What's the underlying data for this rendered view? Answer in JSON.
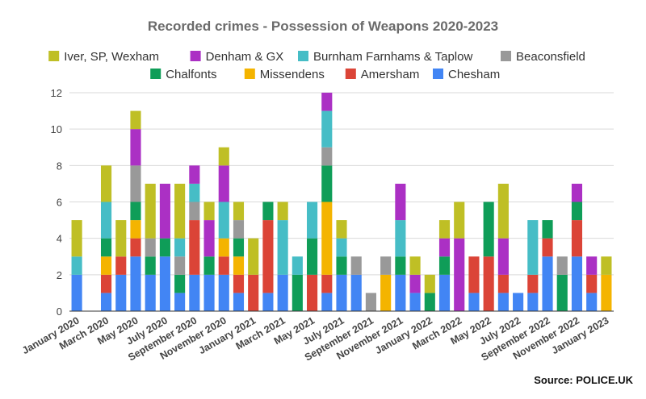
{
  "chart_data": {
    "type": "bar",
    "stacked": true,
    "title": "Recorded crimes - Possession of Weapons 2020-2023",
    "source": "Source: POLICE.UK",
    "xlabel": "",
    "ylabel": "",
    "ylim": [
      0,
      12
    ],
    "yticks": [
      0,
      2,
      4,
      6,
      8,
      10,
      12
    ],
    "grid": true,
    "legend_position": "top",
    "categories": [
      "January 2020",
      "February 2020",
      "March 2020",
      "April 2020",
      "May 2020",
      "June 2020",
      "July 2020",
      "August 2020",
      "September 2020",
      "October 2020",
      "November 2020",
      "December 2020",
      "January 2021",
      "February 2021",
      "March 2021",
      "April 2021",
      "May 2021",
      "June 2021",
      "July 2021",
      "August 2021",
      "September 2021",
      "October 2021",
      "November 2021",
      "December 2021",
      "January 2022",
      "February 2022",
      "March 2022",
      "April 2022",
      "May 2022",
      "June 2022",
      "July 2022",
      "August 2022",
      "September 2022",
      "October 2022",
      "November 2022",
      "December 2022",
      "January 2023"
    ],
    "tick_labels": [
      "January 2020",
      "March 2020",
      "May 2020",
      "July 2020",
      "September 2020",
      "November 2020",
      "January 2021",
      "March 2021",
      "May 2021",
      "July 2021",
      "September 2021",
      "November 2021",
      "January 2022",
      "March 2022",
      "May 2022",
      "July 2022",
      "September 2022",
      "November 2022",
      "January 2023"
    ],
    "series": [
      {
        "name": "Chesham",
        "color": "#4285f4",
        "values": [
          2,
          0,
          1,
          2,
          3,
          2,
          3,
          1,
          2,
          2,
          2,
          1,
          0,
          1,
          2,
          0,
          0,
          1,
          2,
          2,
          0,
          0,
          2,
          1,
          0,
          2,
          0,
          1,
          0,
          1,
          1,
          1,
          3,
          0,
          3,
          1,
          0
        ]
      },
      {
        "name": "Amersham",
        "color": "#db4437",
        "values": [
          0,
          0,
          1,
          1,
          1,
          0,
          0,
          0,
          3,
          0,
          1,
          1,
          2,
          4,
          0,
          0,
          2,
          1,
          0,
          0,
          0,
          0,
          0,
          0,
          0,
          0,
          0,
          2,
          3,
          1,
          0,
          1,
          1,
          0,
          2,
          1,
          0
        ]
      },
      {
        "name": "Missendens",
        "color": "#f4b400",
        "values": [
          0,
          0,
          1,
          0,
          1,
          0,
          0,
          0,
          0,
          0,
          1,
          1,
          0,
          0,
          0,
          0,
          0,
          4,
          0,
          0,
          0,
          2,
          0,
          0,
          0,
          0,
          0,
          0,
          0,
          0,
          0,
          0,
          0,
          0,
          0,
          0,
          2
        ]
      },
      {
        "name": "Chalfonts",
        "color": "#0f9d58",
        "values": [
          0,
          0,
          1,
          0,
          1,
          1,
          1,
          1,
          0,
          1,
          0,
          1,
          0,
          1,
          0,
          2,
          2,
          2,
          1,
          0,
          0,
          0,
          1,
          0,
          1,
          1,
          0,
          0,
          3,
          0,
          0,
          0,
          1,
          2,
          1,
          0,
          0
        ]
      },
      {
        "name": "Beaconsfield",
        "color": "#999999",
        "values": [
          0,
          0,
          0,
          0,
          2,
          1,
          0,
          1,
          1,
          0,
          0,
          1,
          0,
          0,
          0,
          0,
          0,
          1,
          0,
          1,
          1,
          1,
          0,
          0,
          0,
          0,
          0,
          0,
          0,
          0,
          0,
          0,
          0,
          1,
          0,
          0,
          0
        ]
      },
      {
        "name": "Burnham Farnhams & Taplow",
        "color": "#46bdc6",
        "values": [
          1,
          0,
          2,
          0,
          0,
          0,
          0,
          1,
          1,
          0,
          2,
          0,
          0,
          0,
          3,
          1,
          2,
          2,
          1,
          0,
          0,
          0,
          2,
          0,
          0,
          0,
          0,
          0,
          0,
          0,
          0,
          3,
          0,
          0,
          0,
          0,
          0
        ]
      },
      {
        "name": "Denham & GX",
        "color": "#ab30c4",
        "values": [
          0,
          0,
          0,
          0,
          2,
          0,
          3,
          0,
          1,
          2,
          2,
          0,
          0,
          0,
          0,
          0,
          0,
          1,
          0,
          0,
          0,
          0,
          2,
          1,
          0,
          1,
          4,
          0,
          0,
          2,
          0,
          0,
          0,
          0,
          1,
          1,
          0
        ]
      },
      {
        "name": "Iver, SP, Wexham",
        "color": "#bfbf25",
        "values": [
          2,
          0,
          2,
          2,
          1,
          3,
          0,
          3,
          0,
          1,
          1,
          1,
          2,
          0,
          1,
          0,
          0,
          0,
          1,
          0,
          0,
          0,
          0,
          1,
          1,
          1,
          2,
          0,
          0,
          3,
          0,
          0,
          0,
          0,
          0,
          0,
          1
        ]
      }
    ]
  }
}
